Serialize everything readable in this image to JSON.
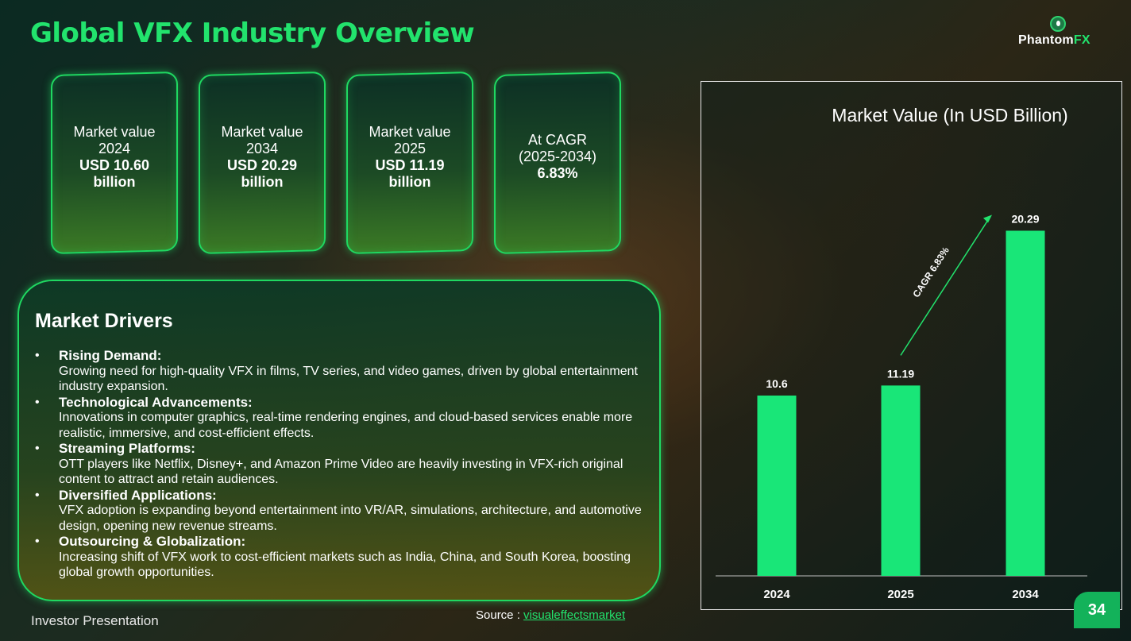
{
  "header": {
    "title": "Global VFX Industry Overview",
    "logo_text_main": "Phantom",
    "logo_text_accent": "FX"
  },
  "cards": [
    {
      "line1": "Market value",
      "line2": "2024",
      "value": "USD 10.60",
      "unit": "billion"
    },
    {
      "line1": "Market value",
      "line2": "2034",
      "value": "USD 20.29",
      "unit": "billion"
    },
    {
      "line1": "Market value",
      "line2": "2025",
      "value": "USD 11.19",
      "unit": "billion"
    },
    {
      "line1": "At CAGR",
      "line2": "(2025-2034)",
      "value": "6.83%",
      "unit": ""
    }
  ],
  "drivers": {
    "title": "Market Drivers",
    "items": [
      {
        "heading": "Rising Demand:",
        "text": "Growing need for high-quality VFX in films, TV series, and video games, driven by global entertainment industry expansion."
      },
      {
        "heading": "Technological Advancements:",
        "text": "Innovations in computer graphics, real-time rendering engines, and cloud-based services enable more realistic, immersive, and cost-efficient effects."
      },
      {
        "heading": "Streaming Platforms:",
        "text": "OTT players like Netflix, Disney+, and Amazon Prime Video are heavily investing in VFX-rich original content to attract and retain audiences."
      },
      {
        "heading": "Diversified Applications:",
        "text": "VFX adoption is expanding beyond entertainment into VR/AR, simulations, architecture, and automotive design, opening new revenue streams."
      },
      {
        "heading": "Outsourcing & Globalization:",
        "text": "Increasing shift of VFX work to cost-efficient markets such as India, China, and South Korea, boosting global growth opportunities."
      }
    ]
  },
  "footer": {
    "left": "Investor Presentation",
    "source_label": "Source : ",
    "source_link": "visualeffectsmarket",
    "page": "34"
  },
  "chart_data": {
    "type": "bar",
    "title": "Market Value (In USD Billion)",
    "categories": [
      "2024",
      "2025",
      "2034"
    ],
    "values": [
      10.6,
      11.19,
      20.29
    ],
    "data_labels": [
      "10.6",
      "11.19",
      "20.29"
    ],
    "annotation": "CAGR 6.83%",
    "ylim": [
      0,
      24
    ],
    "bar_color": "#19e678",
    "grid": false,
    "legend": "none"
  }
}
